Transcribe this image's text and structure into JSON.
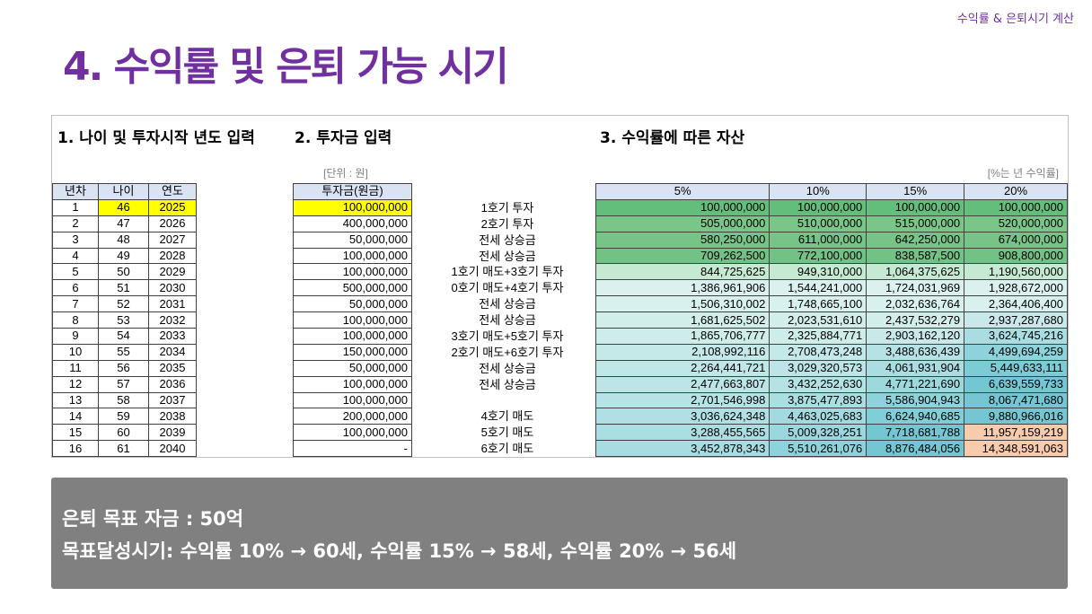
{
  "header": {
    "tag": "수익률 & 은퇴시기 계산",
    "title": "4. 수익률 및 은퇴 가능 시기"
  },
  "sections": {
    "s1": "1. 나이 및 투자시작 년도 입력",
    "s2": "2. 투자금 입력",
    "s3": "3. 수익률에 따른 자산",
    "unit_won": "[단위 : 원]",
    "unit_pct": "[%는 년 수익률]"
  },
  "year_table": {
    "headers": [
      "년차",
      "나이",
      "연도"
    ],
    "rows": [
      [
        "1",
        "46",
        "2025"
      ],
      [
        "2",
        "47",
        "2026"
      ],
      [
        "3",
        "48",
        "2027"
      ],
      [
        "4",
        "49",
        "2028"
      ],
      [
        "5",
        "50",
        "2029"
      ],
      [
        "6",
        "51",
        "2030"
      ],
      [
        "7",
        "52",
        "2031"
      ],
      [
        "8",
        "53",
        "2032"
      ],
      [
        "9",
        "54",
        "2033"
      ],
      [
        "10",
        "55",
        "2034"
      ],
      [
        "11",
        "56",
        "2035"
      ],
      [
        "12",
        "57",
        "2036"
      ],
      [
        "13",
        "58",
        "2037"
      ],
      [
        "14",
        "59",
        "2038"
      ],
      [
        "15",
        "60",
        "2039"
      ],
      [
        "16",
        "61",
        "2040"
      ]
    ]
  },
  "investment_table": {
    "header": "투자금(원금)",
    "rows": [
      "100,000,000",
      "400,000,000",
      "50,000,000",
      "100,000,000",
      "100,000,000",
      "500,000,000",
      "50,000,000",
      "100,000,000",
      "100,000,000",
      "150,000,000",
      "50,000,000",
      "100,000,000",
      "100,000,000",
      "200,000,000",
      "100,000,000",
      "-"
    ]
  },
  "descriptions": [
    "1호기 투자",
    "2호기 투자",
    "전세 상승금",
    "전세 상승금",
    "1호기 매도+3호기 투자",
    "0호기 매도+4호기 투자",
    "전세 상승금",
    "전세 상승금",
    "3호기 매도+5호기 투자",
    "2호기 매도+6호기 투자",
    "전세 상승금",
    "전세 상승금",
    "",
    "4호기 매도",
    "5호기 매도",
    "6호기 매도"
  ],
  "return_table": {
    "headers": [
      "5%",
      "10%",
      "15%",
      "20%"
    ],
    "rows": [
      [
        "100,000,000",
        "100,000,000",
        "100,000,000",
        "100,000,000"
      ],
      [
        "505,000,000",
        "510,000,000",
        "515,000,000",
        "520,000,000"
      ],
      [
        "580,250,000",
        "611,000,000",
        "642,250,000",
        "674,000,000"
      ],
      [
        "709,262,500",
        "772,100,000",
        "838,587,500",
        "908,800,000"
      ],
      [
        "844,725,625",
        "949,310,000",
        "1,064,375,625",
        "1,190,560,000"
      ],
      [
        "1,386,961,906",
        "1,544,241,000",
        "1,724,031,969",
        "1,928,672,000"
      ],
      [
        "1,506,310,002",
        "1,748,665,100",
        "2,032,636,764",
        "2,364,406,400"
      ],
      [
        "1,681,625,502",
        "2,023,531,610",
        "2,437,532,279",
        "2,937,287,680"
      ],
      [
        "1,865,706,777",
        "2,325,884,771",
        "2,903,162,120",
        "3,624,745,216"
      ],
      [
        "2,108,992,116",
        "2,708,473,248",
        "3,488,636,439",
        "4,499,694,259"
      ],
      [
        "2,264,441,721",
        "3,029,320,573",
        "4,061,931,904",
        "5,449,633,111"
      ],
      [
        "2,477,663,807",
        "3,432,252,630",
        "4,771,221,690",
        "6,639,559,733"
      ],
      [
        "2,701,546,998",
        "3,875,477,893",
        "5,586,904,943",
        "8,067,471,680"
      ],
      [
        "3,036,624,348",
        "4,463,025,683",
        "6,624,940,685",
        "9,880,966,016"
      ],
      [
        "3,288,455,565",
        "5,009,328,251",
        "7,718,681,788",
        "11,957,159,219"
      ],
      [
        "3,452,878,343",
        "5,510,261,076",
        "8,876,484,056",
        "14,348,591,063"
      ]
    ],
    "cell_colors": [
      [
        "#63be7b",
        "#63be7b",
        "#63be7b",
        "#63be7b"
      ],
      [
        "#7ac689",
        "#7ac689",
        "#7ac689",
        "#7ac689"
      ],
      [
        "#77c488",
        "#77c488",
        "#77c488",
        "#77c488"
      ],
      [
        "#72c185",
        "#72c185",
        "#72c185",
        "#72c185"
      ],
      [
        "#c6e9d4",
        "#c6e9d4",
        "#c6e9d4",
        "#c6e9d4"
      ],
      [
        "#daf1ee",
        "#daf1ee",
        "#daf1ee",
        "#daf1ee"
      ],
      [
        "#d8f0ee",
        "#d8f0ee",
        "#d8f0ee",
        "#d8f0ee"
      ],
      [
        "#d2eeeb",
        "#d2eeeb",
        "#d2eeeb",
        "#c8e8ea"
      ],
      [
        "#cdecea",
        "#cdecea",
        "#c8e9e8",
        "#a9dde2"
      ],
      [
        "#c5e8e8",
        "#c5e8e8",
        "#b7e2e5",
        "#8ed3db"
      ],
      [
        "#c0e7e8",
        "#bde5e7",
        "#a9dde2",
        "#7dcbd5"
      ],
      [
        "#bde5e7",
        "#b5e2e5",
        "#9dd8de",
        "#74c6d2"
      ],
      [
        "#b7e3e6",
        "#abdee3",
        "#8ed3db",
        "#74c6d2"
      ],
      [
        "#b0e0e4",
        "#a3dae0",
        "#80ced7",
        "#74c6d2"
      ],
      [
        "#abdee3",
        "#9ad7de",
        "#74c6d2",
        "#f8cbad"
      ],
      [
        "#a7dce2",
        "#8ed3db",
        "#74c6d2",
        "#f8cbad"
      ]
    ]
  },
  "goal": {
    "line1": "은퇴 목표 자금 : 50억",
    "line2": "목표달성시기: 수익률 10% → 60세, 수익률 15% → 58세, 수익률 20% → 56세"
  },
  "colors": {
    "title_purple": "#7030a0",
    "highlight_yellow": "#ffff00",
    "header_blue": "#dae3f3",
    "goal_box_gray": "#808080"
  }
}
